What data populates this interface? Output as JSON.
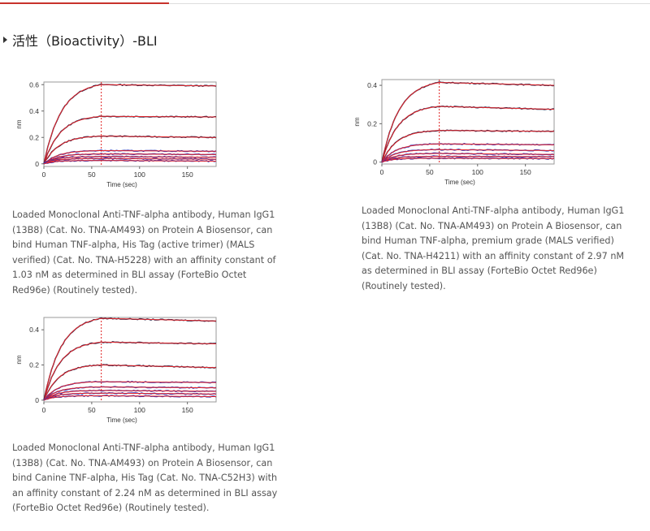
{
  "section": {
    "title": "活性（Bioactivity）-BLI"
  },
  "colors": {
    "accent": "#c8322b",
    "fit": "#e8262a",
    "data": "#2a2fb5",
    "dataDark": "#1a1a40",
    "marker": "#e02020"
  },
  "chart_data": [
    {
      "type": "line",
      "xlabel": "Time (sec)",
      "ylabel": "nm",
      "xlim": [
        0,
        180
      ],
      "ylim": [
        -0.02,
        0.62
      ],
      "xticks": [
        "0",
        "50",
        "100",
        "150"
      ],
      "yticks": [
        "0",
        "0.2",
        "0.4",
        "0.6"
      ],
      "association_end": 60,
      "plateaus": [
        0.6,
        0.36,
        0.21,
        0.1,
        0.075,
        0.055,
        0.04,
        0.025
      ],
      "dissociation_ends": [
        0.59,
        0.355,
        0.2,
        0.095,
        0.07,
        0.05,
        0.035,
        0.02
      ]
    },
    {
      "type": "line",
      "xlabel": "Time (sec)",
      "ylabel": "nm",
      "xlim": [
        0,
        180
      ],
      "ylim": [
        -0.01,
        0.43
      ],
      "xticks": [
        "0",
        "50",
        "100",
        "150"
      ],
      "yticks": [
        "0",
        "0.2",
        "0.4"
      ],
      "association_end": 60,
      "plateaus": [
        0.415,
        0.29,
        0.165,
        0.095,
        0.065,
        0.045,
        0.03,
        0.02
      ],
      "dissociation_ends": [
        0.4,
        0.275,
        0.16,
        0.09,
        0.06,
        0.04,
        0.028,
        0.018
      ]
    },
    {
      "type": "line",
      "xlabel": "Time (sec)",
      "ylabel": "nm",
      "xlim": [
        0,
        180
      ],
      "ylim": [
        -0.01,
        0.47
      ],
      "xticks": [
        "0",
        "50",
        "100",
        "150"
      ],
      "yticks": [
        "0",
        "0.2",
        "0.4"
      ],
      "association_end": 60,
      "plateaus": [
        0.465,
        0.33,
        0.2,
        0.105,
        0.075,
        0.055,
        0.04,
        0.025
      ],
      "dissociation_ends": [
        0.45,
        0.32,
        0.185,
        0.1,
        0.07,
        0.05,
        0.035,
        0.02
      ]
    }
  ],
  "captions": [
    "Loaded Monoclonal Anti-TNF-alpha antibody, Human IgG1 (13B8) (Cat. No. TNA-AM493) on Protein A Biosensor, can bind Human TNF-alpha, His Tag (active trimer) (MALS verified) (Cat. No. TNA-H5228) with an affinity constant of 1.03 nM as determined in BLI assay (ForteBio Octet Red96e) (Routinely tested).",
    "Loaded Monoclonal Anti-TNF-alpha antibody, Human IgG1 (13B8) (Cat. No. TNA-AM493) on Protein A Biosensor, can bind Human TNF-alpha, premium grade (MALS verified) (Cat. No. TNA-H4211) with an affinity constant of 2.97 nM as determined in BLI assay (ForteBio Octet Red96e) (Routinely tested).",
    "Loaded Monoclonal Anti-TNF-alpha antibody, Human IgG1 (13B8) (Cat. No. TNA-AM493) on Protein A Biosensor, can bind Canine TNF-alpha, His Tag (Cat. No. TNA-C52H3) with an affinity constant of 2.24 nM as determined in BLI assay (ForteBio Octet Red96e) (Routinely tested)."
  ]
}
